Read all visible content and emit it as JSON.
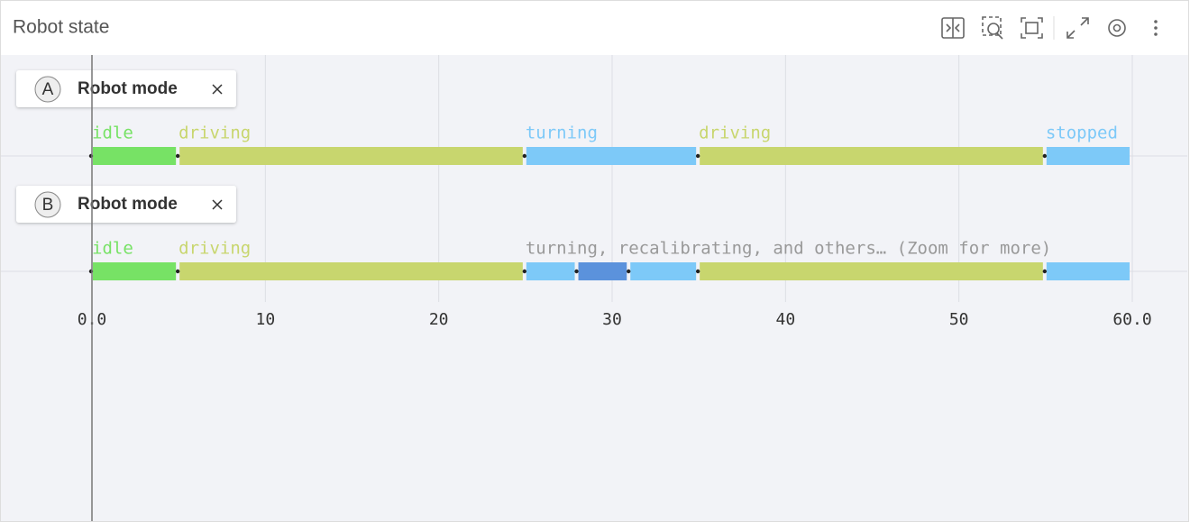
{
  "panel": {
    "title": "Robot state"
  },
  "chart": {
    "xlim": [
      0,
      60
    ],
    "xticks": [
      {
        "value": 0,
        "label": "0.0"
      },
      10,
      20,
      30,
      40,
      50,
      {
        "value": 60,
        "label": "60.0"
      }
    ],
    "rows": [
      {
        "tag": "A",
        "name": "Robot mode",
        "segments": [
          {
            "start": 0,
            "end": 5,
            "label": "idle",
            "color": "#77e265"
          },
          {
            "start": 5,
            "end": 25,
            "label": "driving",
            "color": "#c8d66e"
          },
          {
            "start": 25,
            "end": 35,
            "label": "turning",
            "color": "#7dc9f8"
          },
          {
            "start": 35,
            "end": 55,
            "label": "driving",
            "color": "#c8d66e"
          },
          {
            "start": 55,
            "end": 60,
            "label": "stopped",
            "color": "#7dc9f8"
          }
        ]
      },
      {
        "tag": "B",
        "name": "Robot mode",
        "segments": [
          {
            "start": 0,
            "end": 5,
            "label": "idle",
            "color": "#77e265"
          },
          {
            "start": 5,
            "end": 25,
            "label": "driving",
            "color": "#c8d66e"
          },
          {
            "start": 25,
            "end": 28,
            "label": "turning, recalibrating, and others… (Zoom for more)",
            "color": "#7dc9f8"
          },
          {
            "start": 28,
            "end": 31,
            "color": "#5b92dc"
          },
          {
            "start": 31,
            "end": 35,
            "color": "#7dc9f8"
          },
          {
            "start": 35,
            "end": 55,
            "color": "#c8d66e"
          },
          {
            "start": 55,
            "end": 60,
            "color": "#7dc9f8"
          }
        ]
      }
    ]
  }
}
